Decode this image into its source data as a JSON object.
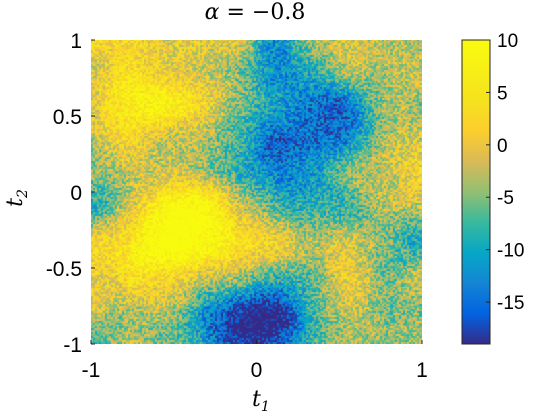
{
  "chart_data": {
    "type": "heatmap",
    "title": {
      "symbol": "α",
      "equals": " = ",
      "value": "−0.8"
    },
    "xlabel": {
      "symbol": "t",
      "subscript": "1"
    },
    "ylabel": {
      "symbol": "t",
      "subscript": "2"
    },
    "xlim": [
      -1,
      1
    ],
    "ylim": [
      -1,
      1
    ],
    "xticks": [
      {
        "value": -1,
        "label": "-1"
      },
      {
        "value": 0,
        "label": "0"
      },
      {
        "value": 1,
        "label": "1"
      }
    ],
    "yticks": [
      {
        "value": 1,
        "label": "1"
      },
      {
        "value": 0.5,
        "label": "0.5"
      },
      {
        "value": 0,
        "label": "0"
      },
      {
        "value": -0.5,
        "label": "-0.5"
      },
      {
        "value": -1,
        "label": "-1"
      }
    ],
    "colorbar": {
      "clim": [
        -19,
        10
      ],
      "colormap": "parula",
      "ticks": [
        {
          "value": 10,
          "label": "10"
        },
        {
          "value": 5,
          "label": "5"
        },
        {
          "value": 0,
          "label": "0"
        },
        {
          "value": -5,
          "label": "-5"
        },
        {
          "value": -10,
          "label": "-10"
        },
        {
          "value": -15,
          "label": "-15"
        }
      ]
    },
    "field_seed": 7,
    "grid_resolution": 160,
    "z_blobs": [
      {
        "x": -0.85,
        "y": 0.55,
        "amp": 6
      },
      {
        "x": -0.6,
        "y": 0.7,
        "amp": 5
      },
      {
        "x": -0.45,
        "y": -0.35,
        "amp": 8
      },
      {
        "x": -0.35,
        "y": -0.1,
        "amp": 7
      },
      {
        "x": -0.7,
        "y": -0.5,
        "amp": 6
      },
      {
        "x": 0.05,
        "y": -0.55,
        "amp": 4
      },
      {
        "x": 0.5,
        "y": -0.65,
        "amp": 4
      },
      {
        "x": 0.85,
        "y": 0.1,
        "amp": 4
      },
      {
        "x": 0.6,
        "y": 0.8,
        "amp": 3
      },
      {
        "x": -0.1,
        "y": 0.65,
        "amp": 3
      },
      {
        "x": -0.1,
        "y": -0.9,
        "amp": -14
      },
      {
        "x": 0.2,
        "y": -0.8,
        "amp": -12
      },
      {
        "x": 0.3,
        "y": 0.05,
        "amp": -11
      },
      {
        "x": 0.5,
        "y": 0.55,
        "amp": -12
      },
      {
        "x": -0.05,
        "y": 0.35,
        "amp": -9
      },
      {
        "x": 0.15,
        "y": 0.85,
        "amp": -8
      },
      {
        "x": 0.85,
        "y": -0.3,
        "amp": -7
      },
      {
        "x": -0.95,
        "y": 0.05,
        "amp": -6
      },
      {
        "x": -0.85,
        "y": -0.9,
        "amp": -5
      }
    ]
  }
}
